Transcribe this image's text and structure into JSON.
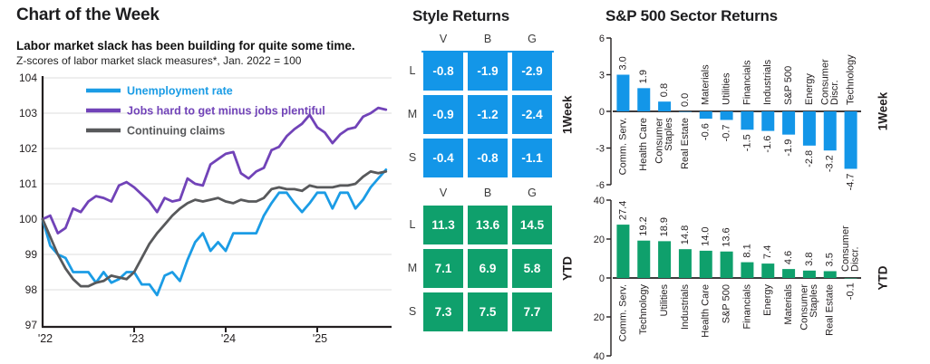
{
  "colors": {
    "blue": "#1396E8",
    "green": "#0FA06C",
    "line_blue": "#1B9CE5",
    "line_purple": "#7143B8",
    "line_gray": "#58595B",
    "axis_dark": "#231F20",
    "gridline": "#DCDCDC"
  },
  "left_panel": {
    "title": "Chart of the Week",
    "subtitle": "Labor market slack has been building for quite some time.",
    "subtext": "Z-scores of labor market slack measures*, Jan. 2022 = 100"
  },
  "style_returns": {
    "title": "Style Returns",
    "grids": [
      {
        "period_label": "1Week",
        "color_key": "blue",
        "top_line": true,
        "columns": [
          "V",
          "B",
          "G"
        ],
        "rows": [
          "L",
          "M",
          "S"
        ],
        "values": [
          [
            -0.8,
            -1.9,
            -2.9
          ],
          [
            -0.9,
            -1.2,
            -2.4
          ],
          [
            -0.4,
            -0.8,
            -1.1
          ]
        ]
      },
      {
        "period_label": "YTD",
        "color_key": "green",
        "top_line": false,
        "columns": [
          "V",
          "B",
          "G"
        ],
        "rows": [
          "L",
          "M",
          "S"
        ],
        "values": [
          [
            11.3,
            13.6,
            14.5
          ],
          [
            7.1,
            6.9,
            5.8
          ],
          [
            7.3,
            7.5,
            7.7
          ]
        ]
      }
    ]
  },
  "sector_returns": {
    "title": "S&P 500 Sector Returns"
  },
  "chart_data": [
    {
      "type": "line",
      "title": "Labor market slack has been building for quite some time.",
      "subtitle": "Z-scores of labor market slack measures*, Jan. 2022 = 100",
      "x_start": "2022-01",
      "x_freq": "monthly",
      "x_ticks": [
        {
          "label": "'22",
          "year": 0
        },
        {
          "label": "'23",
          "year": 1
        },
        {
          "label": "'24",
          "year": 2
        },
        {
          "label": "'25",
          "year": 3
        }
      ],
      "y_ticks": [
        104,
        103,
        102,
        101,
        100,
        99,
        98,
        97
      ],
      "ylim": [
        97,
        104
      ],
      "grid": true,
      "legend_position": "top-left",
      "series": [
        {
          "name": "Unemployment rate",
          "color_key": "line_blue",
          "values": [
            100.0,
            99.25,
            99.0,
            98.9,
            98.5,
            98.5,
            98.5,
            98.2,
            98.5,
            98.2,
            98.3,
            98.5,
            98.5,
            98.15,
            98.15,
            97.85,
            98.4,
            98.5,
            98.25,
            98.85,
            99.35,
            99.6,
            99.1,
            99.35,
            99.1,
            99.6,
            99.6,
            99.6,
            99.6,
            100.1,
            100.45,
            100.75,
            100.75,
            100.45,
            100.2,
            100.45,
            100.75,
            100.75,
            100.3,
            100.75,
            100.75,
            100.3,
            100.55,
            100.9,
            101.15,
            101.4
          ]
        },
        {
          "name": "Jobs hard to get minus jobs plentiful",
          "color_key": "line_purple",
          "values": [
            100.0,
            100.1,
            99.6,
            99.75,
            100.3,
            100.2,
            100.5,
            100.65,
            100.6,
            100.5,
            100.95,
            101.05,
            100.9,
            100.7,
            100.5,
            100.2,
            100.6,
            100.5,
            100.55,
            101.15,
            101.0,
            100.95,
            101.55,
            101.7,
            101.85,
            101.9,
            101.3,
            101.15,
            101.35,
            101.45,
            101.95,
            102.05,
            102.35,
            102.55,
            102.7,
            102.95,
            102.6,
            102.45,
            102.15,
            102.4,
            102.55,
            102.6,
            102.9,
            103.0,
            103.15,
            103.1
          ]
        },
        {
          "name": "Continuing claims",
          "color_key": "line_gray",
          "values": [
            100.0,
            99.5,
            99.0,
            98.6,
            98.3,
            98.1,
            98.1,
            98.2,
            98.25,
            98.4,
            98.35,
            98.3,
            98.5,
            98.9,
            99.3,
            99.6,
            99.85,
            100.1,
            100.3,
            100.45,
            100.55,
            100.5,
            100.55,
            100.6,
            100.5,
            100.45,
            100.55,
            100.5,
            100.5,
            100.6,
            100.85,
            100.9,
            100.85,
            100.85,
            100.8,
            100.95,
            100.9,
            100.9,
            100.9,
            100.95,
            100.95,
            101.0,
            101.2,
            101.35,
            101.3,
            101.35
          ]
        }
      ]
    },
    {
      "type": "heatmap",
      "title": "Style Returns — 1Week",
      "columns": [
        "V",
        "B",
        "G"
      ],
      "rows": [
        "L",
        "M",
        "S"
      ],
      "values": [
        [
          -0.8,
          -1.9,
          -2.9
        ],
        [
          -0.9,
          -1.2,
          -2.4
        ],
        [
          -0.4,
          -0.8,
          -1.1
        ]
      ]
    },
    {
      "type": "heatmap",
      "title": "Style Returns — YTD",
      "columns": [
        "V",
        "B",
        "G"
      ],
      "rows": [
        "L",
        "M",
        "S"
      ],
      "values": [
        [
          11.3,
          13.6,
          14.5
        ],
        [
          7.1,
          6.9,
          5.8
        ],
        [
          7.3,
          7.5,
          7.7
        ]
      ]
    },
    {
      "type": "bar",
      "title": "S&P 500 Sector Returns — 1Week",
      "period_label": "1Week",
      "color_key": "blue",
      "y_ticks": [
        6,
        3,
        0,
        -3,
        -6
      ],
      "ylim": [
        -6,
        6
      ],
      "categories": [
        "Comm. Serv.",
        "Health Care",
        "Consumer\nStaples",
        "Real Estate",
        "Materials",
        "Utilities",
        "Financials",
        "Industrials",
        "S&P 500",
        "Energy",
        "Consumer\nDiscr.",
        "Technology"
      ],
      "values": [
        3.0,
        1.9,
        0.8,
        0.0,
        -0.6,
        -0.7,
        -1.5,
        -1.6,
        -1.9,
        -2.8,
        -3.2,
        -4.7
      ]
    },
    {
      "type": "bar",
      "title": "S&P 500 Sector Returns — YTD",
      "period_label": "YTD",
      "color_key": "green",
      "y_ticks": [
        40,
        20,
        0,
        -20,
        -40
      ],
      "ylim": [
        -40,
        40
      ],
      "categories": [
        "Comm. Serv.",
        "Technology",
        "Utilities",
        "Industrials",
        "Health Care",
        "S&P 500",
        "Financials",
        "Energy",
        "Materials",
        "Consumer\nStaples",
        "Real Estate",
        "Consumer\nDiscr."
      ],
      "values": [
        27.4,
        19.2,
        18.9,
        14.8,
        14.0,
        13.6,
        8.1,
        7.4,
        4.6,
        3.8,
        3.5,
        -0.1
      ]
    }
  ]
}
